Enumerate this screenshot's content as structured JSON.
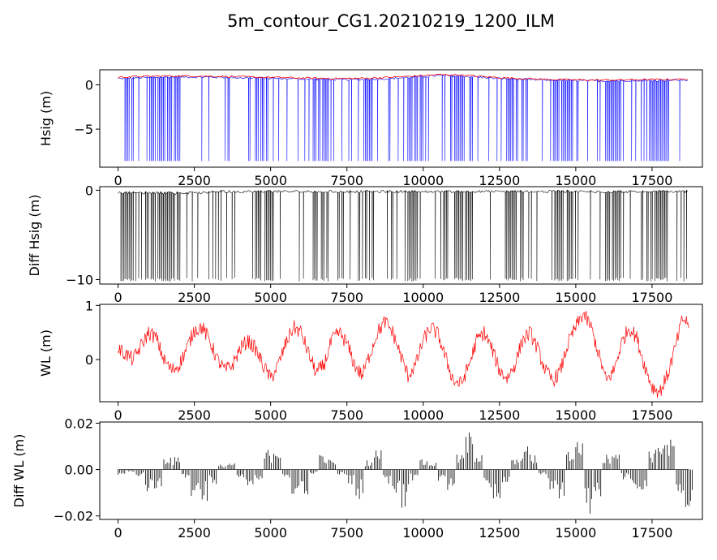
{
  "figure": {
    "title": "5m_contour_CG1.20210219_1200_ILM"
  },
  "chart_data": [
    {
      "type": "line",
      "ylabel": "Hsig (m)",
      "xlim": [
        -600,
        19150
      ],
      "ylim": [
        -9.3,
        1.7
      ],
      "xticks": [
        "0",
        "2500",
        "5000",
        "7500",
        "10000",
        "12500",
        "15000",
        "17500"
      ],
      "xtick_values": [
        0,
        2500,
        5000,
        7500,
        10000,
        12500,
        15000,
        17500
      ],
      "yticks": [
        "−5",
        "0"
      ],
      "ytick_values": [
        -5,
        0
      ],
      "grid": false,
      "series": [
        {
          "color": "#0000ff",
          "values": [
            0.7,
            0.8,
            0.85,
            0.9,
            0.88,
            0.85,
            0.8,
            0.75,
            0.7,
            0.65,
            0.6,
            0.6,
            0.65,
            0.75,
            0.9,
            1.05,
            1.0,
            0.85,
            0.7,
            0.6,
            0.55,
            0.5,
            0.45,
            0.45,
            0.48,
            0.5,
            0.52,
            0.55
          ],
          "x": [
            0,
            700,
            1400,
            2100,
            2800,
            3500,
            4200,
            4900,
            5600,
            6300,
            7000,
            7700,
            8400,
            9100,
            9800,
            10500,
            11200,
            11900,
            12600,
            13300,
            14000,
            14700,
            15400,
            16100,
            16800,
            17500,
            18200,
            18700
          ],
          "dropout_value": -8.6
        },
        {
          "color": "#ff0000",
          "values": [
            0.85,
            0.95,
            1.0,
            1.0,
            0.98,
            0.95,
            0.9,
            0.85,
            0.8,
            0.75,
            0.72,
            0.72,
            0.78,
            0.88,
            1.0,
            1.15,
            1.1,
            0.95,
            0.8,
            0.7,
            0.62,
            0.58,
            0.55,
            0.55,
            0.57,
            0.6,
            0.62,
            0.65
          ],
          "x": [
            0,
            700,
            1400,
            2100,
            2800,
            3500,
            4200,
            4900,
            5600,
            6300,
            7000,
            7700,
            8400,
            9100,
            9800,
            10500,
            11200,
            11900,
            12600,
            13300,
            14000,
            14700,
            15400,
            16100,
            16800,
            17500,
            18200,
            18700
          ]
        }
      ]
    },
    {
      "type": "line",
      "ylabel": "Diff Hsig (m)",
      "xlim": [
        -600,
        19150
      ],
      "ylim": [
        -10.5,
        0.4
      ],
      "xticks": [
        "0",
        "2500",
        "5000",
        "7500",
        "10000",
        "12500",
        "15000",
        "17500"
      ],
      "xtick_values": [
        0,
        2500,
        5000,
        7500,
        10000,
        12500,
        15000,
        17500
      ],
      "yticks": [
        "−10",
        "0"
      ],
      "ytick_values": [
        -10,
        0
      ],
      "grid": false,
      "series": [
        {
          "color": "#000000",
          "baseline": -0.15,
          "dropout_value": -10.0
        }
      ]
    },
    {
      "type": "line",
      "ylabel": "WL (m)",
      "xlim": [
        -600,
        19150
      ],
      "ylim": [
        -0.78,
        1.02
      ],
      "xticks": [
        "0",
        "2500",
        "5000",
        "7500",
        "10000",
        "12500",
        "15000",
        "17500"
      ],
      "xtick_values": [
        0,
        2500,
        5000,
        7500,
        10000,
        12500,
        15000,
        17500
      ],
      "yticks": [
        "0",
        "1"
      ],
      "ytick_values": [
        0,
        1
      ],
      "grid": false,
      "series": [
        {
          "color": "#ff0000",
          "x": [
            0,
            250,
            500,
            750,
            1000,
            1250,
            1500,
            1750,
            2000,
            2250,
            2500,
            2750,
            3000,
            3250,
            3500,
            3750,
            4000,
            4250,
            4500,
            4750,
            5000,
            5250,
            5500,
            5750,
            6000,
            6250,
            6500,
            6750,
            7000,
            7250,
            7500,
            7750,
            8000,
            8250,
            8500,
            8750,
            9000,
            9250,
            9500,
            9750,
            10000,
            10250,
            10500,
            10750,
            11000,
            11250,
            11500,
            11750,
            12000,
            12250,
            12500,
            12750,
            13000,
            13250,
            13500,
            13750,
            14000,
            14250,
            14500,
            14750,
            15000,
            15250,
            15500,
            15750,
            16000,
            16250,
            16500,
            16750,
            17000,
            17250,
            17500,
            17750,
            18000,
            18250,
            18500,
            18750
          ],
          "values": [
            0.2,
            0.1,
            0.0,
            0.25,
            0.5,
            0.4,
            0.0,
            -0.2,
            -0.1,
            0.2,
            0.55,
            0.6,
            0.35,
            0.0,
            -0.2,
            -0.1,
            0.2,
            0.35,
            0.2,
            -0.1,
            -0.35,
            -0.1,
            0.3,
            0.6,
            0.5,
            0.1,
            -0.25,
            -0.1,
            0.35,
            0.5,
            0.3,
            -0.1,
            -0.3,
            0.1,
            0.5,
            0.7,
            0.5,
            0.1,
            -0.3,
            -0.1,
            0.35,
            0.6,
            0.45,
            0.0,
            -0.4,
            -0.45,
            -0.1,
            0.35,
            0.5,
            0.2,
            -0.2,
            -0.35,
            -0.1,
            0.35,
            0.5,
            0.2,
            -0.2,
            -0.4,
            -0.2,
            0.3,
            0.6,
            0.85,
            0.6,
            0.1,
            -0.4,
            -0.2,
            0.3,
            0.6,
            0.4,
            -0.1,
            -0.5,
            -0.6,
            -0.3,
            0.2,
            0.75,
            0.65
          ]
        }
      ]
    },
    {
      "type": "bar",
      "ylabel": "Diff WL (m)",
      "xlim": [
        -600,
        19150
      ],
      "ylim": [
        -0.0215,
        0.0205
      ],
      "xticks": [
        "0",
        "2500",
        "5000",
        "7500",
        "10000",
        "12500",
        "15000",
        "17500"
      ],
      "xtick_values": [
        0,
        2500,
        5000,
        7500,
        10000,
        12500,
        15000,
        17500
      ],
      "yticks": [
        "−0.02",
        "0.00",
        "0.02"
      ],
      "ytick_values": [
        -0.02,
        0.0,
        0.02
      ],
      "grid": false,
      "series": [
        {
          "color": "#000000",
          "x": [
            0,
            300,
            600,
            900,
            1200,
            1500,
            1800,
            2100,
            2400,
            2700,
            3000,
            3300,
            3600,
            3900,
            4200,
            4500,
            4800,
            5100,
            5400,
            5700,
            6000,
            6300,
            6600,
            6900,
            7200,
            7500,
            7800,
            8100,
            8400,
            8700,
            9000,
            9300,
            9600,
            9900,
            10200,
            10500,
            10800,
            11100,
            11400,
            11700,
            12000,
            12300,
            12600,
            12900,
            13200,
            13500,
            13800,
            14100,
            14400,
            14700,
            15000,
            15300,
            15600,
            15900,
            16200,
            16500,
            16800,
            17100,
            17400,
            17700,
            18000,
            18300,
            18600
          ],
          "values": [
            -0.002,
            -0.001,
            -0.003,
            -0.01,
            -0.008,
            0.006,
            0.005,
            -0.004,
            -0.012,
            -0.014,
            -0.006,
            0.002,
            0.003,
            -0.003,
            -0.007,
            -0.004,
            0.008,
            0.01,
            -0.004,
            -0.01,
            -0.012,
            -0.002,
            0.006,
            0.004,
            -0.002,
            -0.006,
            -0.012,
            0.004,
            0.008,
            -0.006,
            -0.012,
            -0.016,
            -0.005,
            0.004,
            0.003,
            -0.005,
            -0.008,
            0.006,
            0.015,
            0.008,
            -0.008,
            -0.012,
            -0.006,
            0.004,
            0.01,
            0.006,
            -0.002,
            -0.008,
            -0.014,
            0.008,
            0.012,
            -0.018,
            -0.012,
            0.006,
            0.01,
            -0.004,
            -0.008,
            -0.012,
            0.008,
            0.014,
            0.012,
            -0.01,
            -0.016
          ]
        }
      ]
    }
  ]
}
